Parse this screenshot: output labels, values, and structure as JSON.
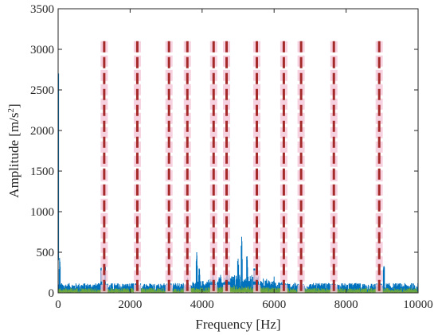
{
  "chart_data": {
    "type": "line",
    "xlabel": "Frequency [Hz]",
    "ylabel": {
      "main": "Amplitude [m/s",
      "superscript": "2",
      "close": "]"
    },
    "xlim": [
      0,
      10000
    ],
    "ylim": [
      0,
      3500
    ],
    "x_ticks": [
      0,
      2000,
      4000,
      6000,
      8000,
      10000
    ],
    "y_ticks": [
      0,
      500,
      1000,
      1500,
      2000,
      2500,
      3000,
      3500
    ],
    "grid": false,
    "series": [
      {
        "color": "#0072BD",
        "style": "dense-spectrum",
        "baseline_band": [
          20,
          120
        ],
        "peaks": [
          {
            "x": 0,
            "y": 3060
          },
          {
            "x": 40,
            "y": 430
          },
          {
            "x": 1200,
            "y": 310
          },
          {
            "x": 1300,
            "y": 360
          },
          {
            "x": 2200,
            "y": 150
          },
          {
            "x": 3600,
            "y": 190
          },
          {
            "x": 3850,
            "y": 500
          },
          {
            "x": 3920,
            "y": 300
          },
          {
            "x": 4300,
            "y": 220
          },
          {
            "x": 4700,
            "y": 250
          },
          {
            "x": 5000,
            "y": 420
          },
          {
            "x": 5100,
            "y": 690
          },
          {
            "x": 5250,
            "y": 450
          },
          {
            "x": 5450,
            "y": 300
          },
          {
            "x": 6000,
            "y": 200
          },
          {
            "x": 9050,
            "y": 330
          }
        ]
      },
      {
        "color": "#77AC30",
        "style": "dense-spectrum-secondary",
        "baseline_band": [
          5,
          60
        ]
      }
    ],
    "marker_lines": {
      "color": "#A52A2A",
      "halo_color": "#F5C6D8",
      "y_top": 3100,
      "x": [
        1280,
        2200,
        3080,
        3590,
        4320,
        4680,
        5520,
        6270,
        6750,
        7660,
        8920
      ]
    }
  }
}
